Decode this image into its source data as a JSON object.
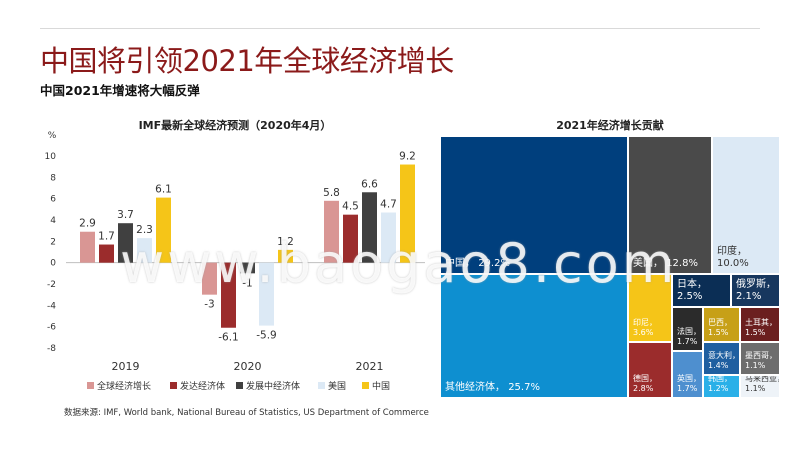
{
  "slide": {
    "title": "中国将引领2021年全球经济增长",
    "subtitle": "中国2021年增速将大幅反弹",
    "source": "数据来源: IMF, World bank, National Bureau of Statistics, US Department of Commerce",
    "watermark": "www.baogao8.com"
  },
  "chart_data": [
    {
      "type": "bar",
      "title": "IMF最新全球经济预测（2020年4月）",
      "ylabel": "%",
      "ylim": [
        -8,
        10
      ],
      "yticks": [
        10,
        8,
        6,
        4,
        2,
        0,
        -2,
        -4,
        -6,
        -8
      ],
      "categories": [
        "2019",
        "2020",
        "2021"
      ],
      "legend_position": "bottom",
      "series": [
        {
          "name": "全球经济增长",
          "color": "#d99694",
          "values": [
            2.9,
            -3,
            5.8
          ],
          "labels": [
            "2.9",
            "-3",
            "5.8"
          ]
        },
        {
          "name": "发达经济体",
          "color": "#9b2c2c",
          "values": [
            1.7,
            -6.1,
            4.5
          ],
          "labels": [
            "1.7",
            "-6.1",
            "4.5"
          ]
        },
        {
          "name": "发展中经济体",
          "color": "#404040",
          "values": [
            3.7,
            -1,
            6.6
          ],
          "labels": [
            "3.7",
            "-1",
            "6.6"
          ]
        },
        {
          "name": "美国",
          "color": "#dce9f5",
          "values": [
            2.3,
            -5.9,
            4.7
          ],
          "labels": [
            "2.3",
            "-5.9",
            "4.7"
          ]
        },
        {
          "name": "中国",
          "color": "#f5c518",
          "values": [
            6.1,
            1.2,
            9.2
          ],
          "labels": [
            "6.1",
            "1.2",
            "9.2"
          ]
        }
      ]
    },
    {
      "type": "treemap",
      "title": "2021年经济增长贡献",
      "items": [
        {
          "name": "中国",
          "value": "29.2%",
          "color": "#003f7d",
          "text_color": "#ffffff"
        },
        {
          "name": "其他经济体",
          "value": "25.7%",
          "color": "#0e8fd0",
          "text_color": "#ffffff"
        },
        {
          "name": "美国",
          "value": "12.8%",
          "color": "#4a4a4a",
          "text_color": "#ffffff"
        },
        {
          "name": "印度",
          "value": "10.0%",
          "color": "#dce9f5",
          "text_color": "#333333"
        },
        {
          "name": "俄罗斯",
          "value": "2.1%",
          "color": "#17375e",
          "text_color": "#ffffff"
        },
        {
          "name": "日本",
          "value": "2.5%",
          "color": "#0b2e55",
          "text_color": "#ffffff"
        },
        {
          "name": "印尼",
          "value": "3.6%",
          "color": "#f5c518",
          "text_color": "#ffffff"
        },
        {
          "name": "德国",
          "value": "2.8%",
          "color": "#9b2c2c",
          "text_color": "#ffffff"
        },
        {
          "name": "法国",
          "value": "1.7%",
          "color": "#2b2b2b",
          "text_color": "#ffffff"
        },
        {
          "name": "巴西",
          "value": "1.5%",
          "color": "#c7a017",
          "text_color": "#ffffff"
        },
        {
          "name": "土耳其",
          "value": "1.5%",
          "color": "#6b1f1f",
          "text_color": "#ffffff"
        },
        {
          "name": "英国",
          "value": "1.7%",
          "color": "#4e8fcf",
          "text_color": "#ffffff"
        },
        {
          "name": "意大利",
          "value": "1.4%",
          "color": "#1f5fa0",
          "text_color": "#ffffff"
        },
        {
          "name": "墨西哥",
          "value": "1.1%",
          "color": "#6d6d6d",
          "text_color": "#ffffff"
        },
        {
          "name": "韩国",
          "value": "1.2%",
          "color": "#2ab0e8",
          "text_color": "#ffffff"
        },
        {
          "name": "马来西亚",
          "value": "1.1%",
          "color": "#eef3f8",
          "text_color": "#333333"
        }
      ]
    }
  ]
}
